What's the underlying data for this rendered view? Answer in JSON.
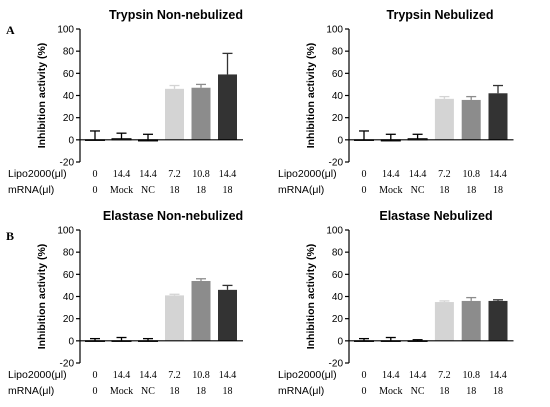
{
  "panel_labels": [
    "A",
    "B"
  ],
  "chart_data": [
    {
      "type": "bar",
      "title": "Trypsin Non-nebulized",
      "ylabel": "Inhibition activity (%)",
      "ylim": [
        -20,
        100
      ],
      "yticks": [
        -20,
        0,
        20,
        40,
        60,
        80,
        100
      ],
      "row_labels": [
        "Lipo2000(μl)",
        "mRNA(μl)"
      ],
      "categories": [
        [
          "0",
          "0"
        ],
        [
          "14.4",
          "Mock"
        ],
        [
          "14.4",
          "NC"
        ],
        [
          "7.2",
          "18"
        ],
        [
          "10.8",
          "18"
        ],
        [
          "14.4",
          "18"
        ]
      ],
      "values": [
        0,
        1,
        -1,
        46,
        47,
        59
      ],
      "errors": [
        8,
        5,
        6,
        3,
        3,
        19
      ],
      "bar_colors": [
        "#ffffff",
        "#ffffff",
        "#ffffff",
        "#d4d4d4",
        "#8c8c8c",
        "#333333"
      ]
    },
    {
      "type": "bar",
      "title": "Trypsin Nebulized",
      "ylabel": "Inhibition activity (%)",
      "ylim": [
        -20,
        100
      ],
      "yticks": [
        -20,
        0,
        20,
        40,
        60,
        80,
        100
      ],
      "row_labels": [
        "Lipo2000(μl)",
        "mRNA(μl)"
      ],
      "categories": [
        [
          "0",
          "0"
        ],
        [
          "14.4",
          "Mock"
        ],
        [
          "14.4",
          "NC"
        ],
        [
          "7.2",
          "18"
        ],
        [
          "10.8",
          "18"
        ],
        [
          "14.4",
          "18"
        ]
      ],
      "values": [
        0,
        -1,
        1,
        37,
        36,
        42
      ],
      "errors": [
        8,
        6,
        4,
        2,
        3,
        7
      ],
      "bar_colors": [
        "#ffffff",
        "#ffffff",
        "#ffffff",
        "#d4d4d4",
        "#8c8c8c",
        "#333333"
      ]
    },
    {
      "type": "bar",
      "title": "Elastase Non-nebulized",
      "ylabel": "Inhibition activity (%)",
      "ylim": [
        -20,
        100
      ],
      "yticks": [
        -20,
        0,
        20,
        40,
        60,
        80,
        100
      ],
      "row_labels": [
        "Lipo2000(μl)",
        "mRNA(μl)"
      ],
      "categories": [
        [
          "0",
          "0"
        ],
        [
          "14.4",
          "Mock"
        ],
        [
          "14.4",
          "NC"
        ],
        [
          "7.2",
          "18"
        ],
        [
          "10.8",
          "18"
        ],
        [
          "14.4",
          "18"
        ]
      ],
      "values": [
        0,
        0,
        0,
        41,
        54,
        46
      ],
      "errors": [
        2,
        3,
        2,
        1,
        2,
        4
      ],
      "bar_colors": [
        "#ffffff",
        "#ffffff",
        "#ffffff",
        "#d4d4d4",
        "#8c8c8c",
        "#333333"
      ]
    },
    {
      "type": "bar",
      "title": "Elastase Nebulized",
      "ylabel": "Inhibition activity (%)",
      "ylim": [
        -20,
        100
      ],
      "yticks": [
        -20,
        0,
        20,
        40,
        60,
        80,
        100
      ],
      "row_labels": [
        "Lipo2000(μl)",
        "mRNA(μl)"
      ],
      "categories": [
        [
          "0",
          "0"
        ],
        [
          "14.4",
          "Mock"
        ],
        [
          "14.4",
          "NC"
        ],
        [
          "7.2",
          "18"
        ],
        [
          "10.8",
          "18"
        ],
        [
          "14.4",
          "18"
        ]
      ],
      "values": [
        0,
        0,
        0,
        35,
        36,
        36
      ],
      "errors": [
        2,
        3,
        1,
        1,
        3,
        1
      ],
      "bar_colors": [
        "#ffffff",
        "#ffffff",
        "#ffffff",
        "#d4d4d4",
        "#8c8c8c",
        "#333333"
      ]
    }
  ]
}
